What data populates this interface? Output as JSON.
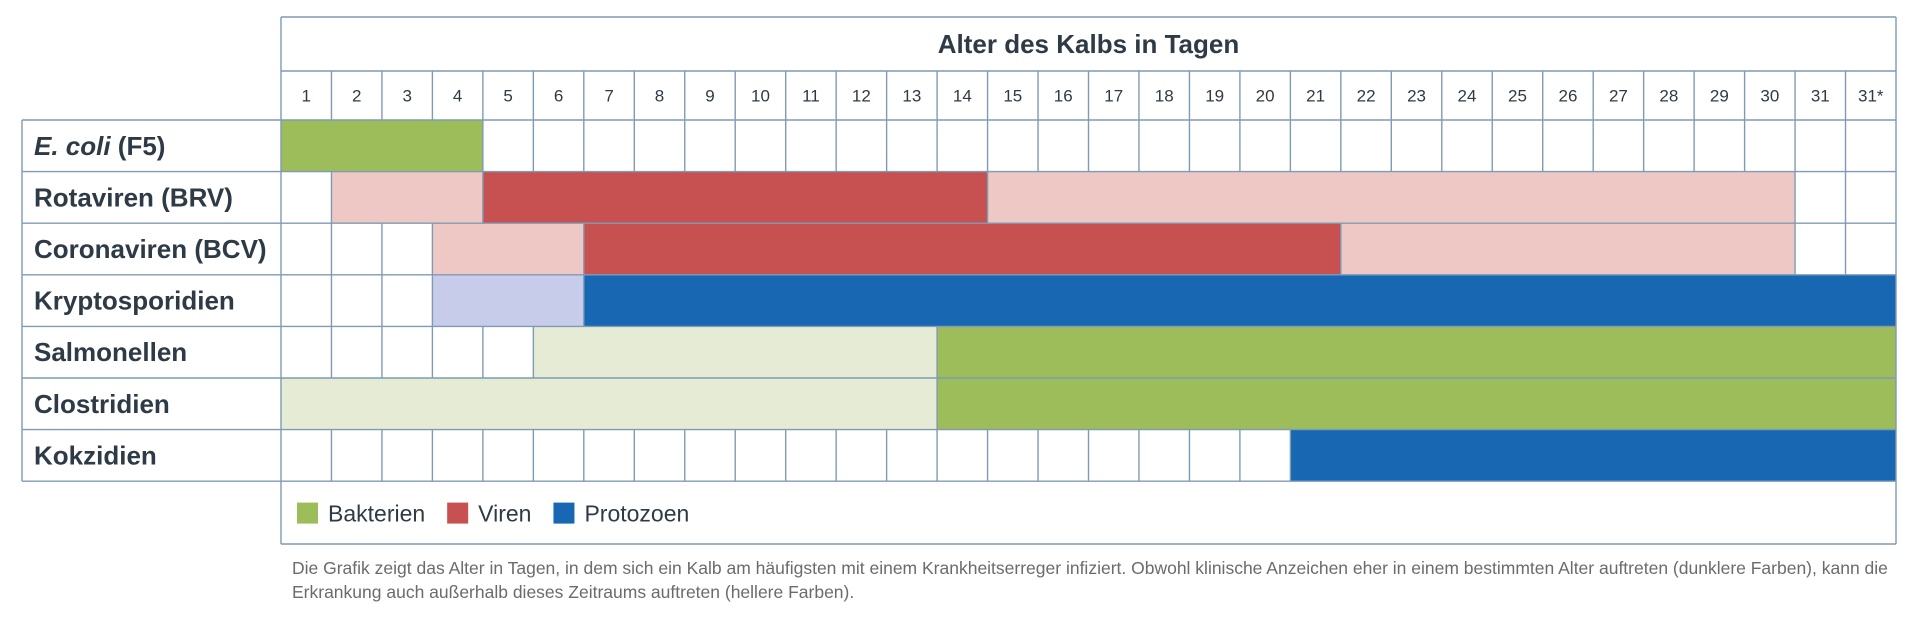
{
  "chart_data": {
    "type": "gantt",
    "title": "Alter des Kalbs in Tagen",
    "days": [
      "1",
      "2",
      "3",
      "4",
      "5",
      "6",
      "7",
      "8",
      "9",
      "10",
      "11",
      "12",
      "13",
      "14",
      "15",
      "16",
      "17",
      "18",
      "19",
      "20",
      "21",
      "22",
      "23",
      "24",
      "25",
      "26",
      "27",
      "28",
      "29",
      "30",
      "31",
      "31*"
    ],
    "rows": [
      {
        "label": "E. coli",
        "label_suffix": " (F5)",
        "italic_part": true,
        "segments": [
          {
            "start_day": 1,
            "end_day": 4,
            "category": "bakterien",
            "intensity": "dark"
          }
        ]
      },
      {
        "label": "Rotaviren (BRV)",
        "segments": [
          {
            "start_day": 2,
            "end_day": 4,
            "category": "viren",
            "intensity": "light"
          },
          {
            "start_day": 5,
            "end_day": 14,
            "category": "viren",
            "intensity": "dark"
          },
          {
            "start_day": 15,
            "end_day": 30,
            "category": "viren",
            "intensity": "light"
          }
        ]
      },
      {
        "label": "Coronaviren (BCV)",
        "segments": [
          {
            "start_day": 4,
            "end_day": 6,
            "category": "viren",
            "intensity": "light"
          },
          {
            "start_day": 7,
            "end_day": 21,
            "category": "viren",
            "intensity": "dark"
          },
          {
            "start_day": 22,
            "end_day": 30,
            "category": "viren",
            "intensity": "light"
          }
        ]
      },
      {
        "label": "Kryptosporidien",
        "segments": [
          {
            "start_day": 4,
            "end_day": 6,
            "category": "protozoen",
            "intensity": "light"
          },
          {
            "start_day": 7,
            "end_day": 32,
            "category": "protozoen",
            "intensity": "dark"
          }
        ]
      },
      {
        "label": "Salmonellen",
        "segments": [
          {
            "start_day": 6,
            "end_day": 13,
            "category": "bakterien",
            "intensity": "light"
          },
          {
            "start_day": 14,
            "end_day": 32,
            "category": "bakterien",
            "intensity": "dark"
          }
        ]
      },
      {
        "label": "Clostridien",
        "segments": [
          {
            "start_day": 1,
            "end_day": 13,
            "category": "bakterien",
            "intensity": "light"
          },
          {
            "start_day": 14,
            "end_day": 32,
            "category": "bakterien",
            "intensity": "dark"
          }
        ]
      },
      {
        "label": "Kokzidien",
        "segments": [
          {
            "start_day": 21,
            "end_day": 32,
            "category": "protozoen",
            "intensity": "dark"
          }
        ]
      }
    ],
    "legend": [
      {
        "key": "bakterien",
        "label": "Bakterien"
      },
      {
        "key": "viren",
        "label": "Viren"
      },
      {
        "key": "protozoen",
        "label": "Protozoen"
      }
    ],
    "colors": {
      "bakterien": {
        "dark": "#9dbc5a",
        "light": "#e6ebd5"
      },
      "viren": {
        "dark": "#c75050",
        "light": "#edc8c4"
      },
      "protozoen": {
        "dark": "#1767b3",
        "light": "#c6cce9"
      },
      "grid": "#7f9bb4",
      "text": "#2e3a46"
    },
    "legend_position": "bottom-left"
  },
  "footnote": "Die Grafik zeigt das Alter in Tagen, in dem sich ein Kalb am häufigsten mit einem Krankheitserreger infiziert. Obwohl klinische Anzeichen eher in einem bestimmten Alter auftreten (dunklere Farben), kann die Erkrankung auch außerhalb dieses Zeitraums auftreten (hellere Farben)."
}
